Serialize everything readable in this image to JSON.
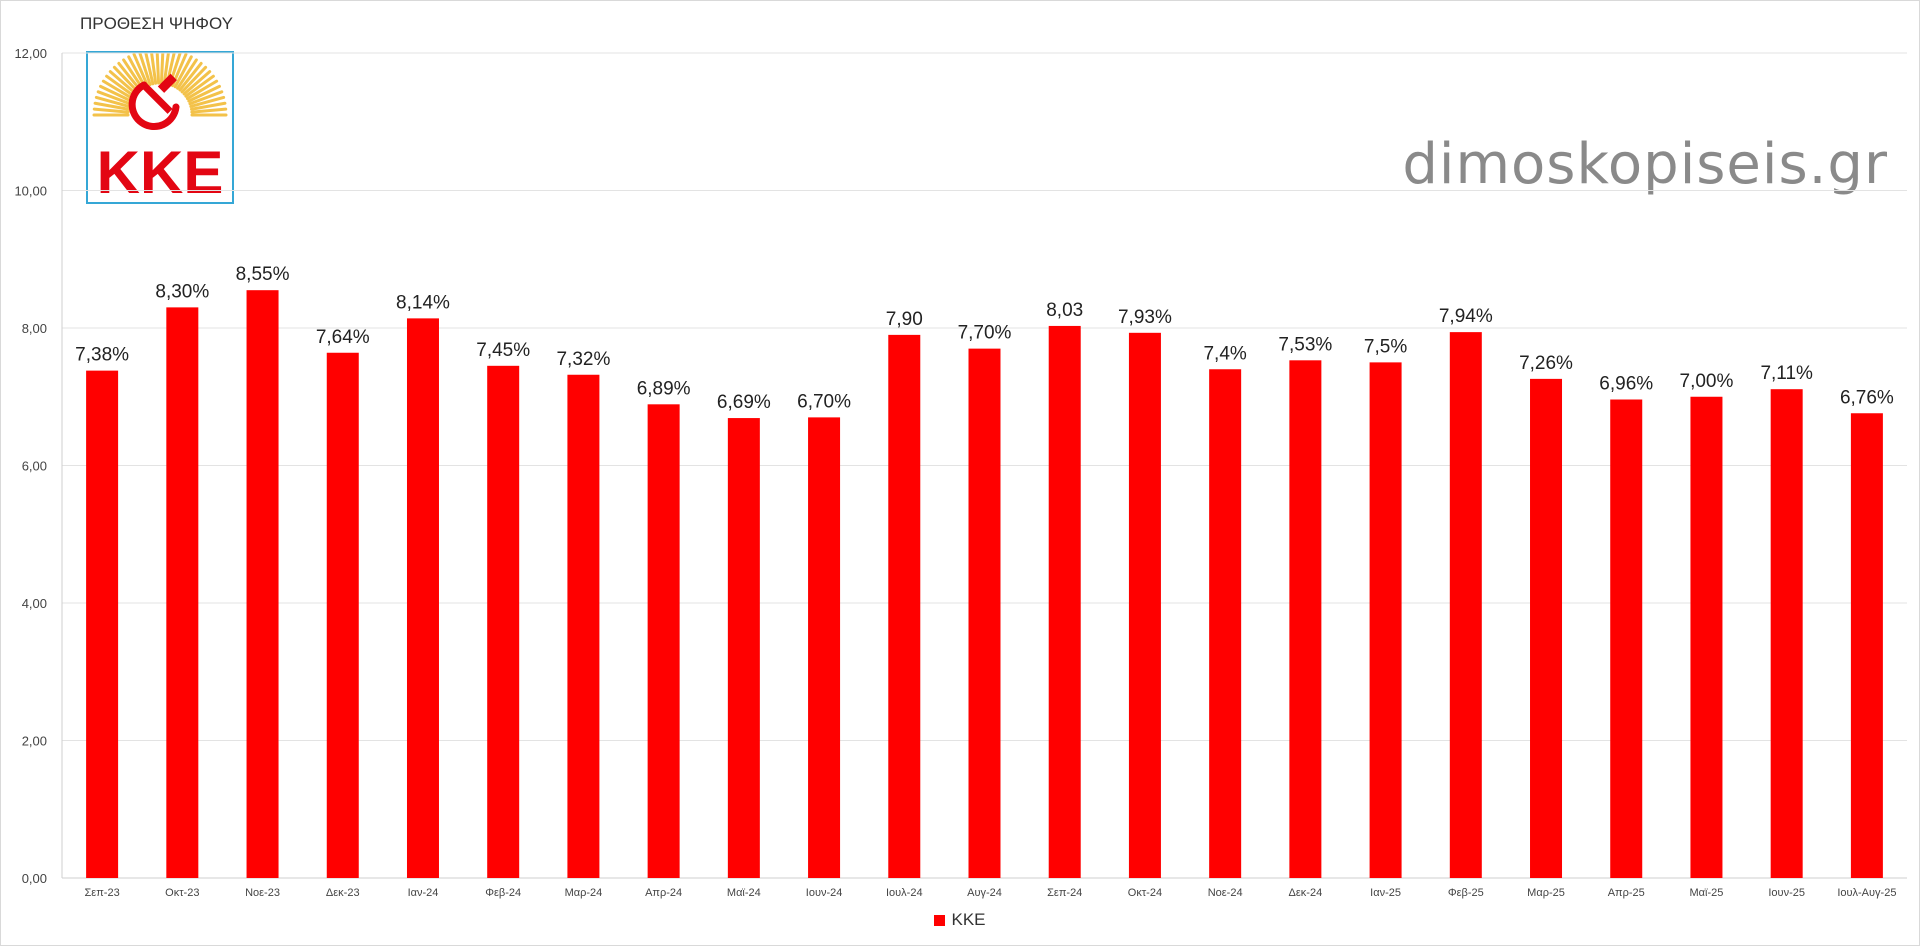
{
  "chart_data": {
    "type": "bar",
    "title": "ΠΡΟΘΕΣΗ ΨΗΦΟΥ",
    "categories": [
      "Σεπ-23",
      "Οκτ-23",
      "Νοε-23",
      "Δεκ-23",
      "Ιαν-24",
      "Φεβ-24",
      "Μαρ-24",
      "Απρ-24",
      "Μαϊ-24",
      "Ιουν-24",
      "Ιουλ-24",
      "Αυγ-24",
      "Σεπ-24",
      "Οκτ-24",
      "Νοε-24",
      "Δεκ-24",
      "Ιαν-25",
      "Φεβ-25",
      "Μαρ-25",
      "Απρ-25",
      "Μαϊ-25",
      "Ιουν-25",
      "Ιουλ-Αυγ-25"
    ],
    "series": [
      {
        "name": "ΚΚΕ",
        "color": "#ff0000",
        "values": [
          7.38,
          8.3,
          8.55,
          7.64,
          8.14,
          7.45,
          7.32,
          6.89,
          6.69,
          6.7,
          7.9,
          7.7,
          8.03,
          7.93,
          7.4,
          7.53,
          7.5,
          7.94,
          7.26,
          6.96,
          7.0,
          7.11,
          6.76
        ],
        "data_labels": [
          "7,38%",
          "8,30%",
          "8,55%",
          "7,64%",
          "8,14%",
          "7,45%",
          "7,32%",
          "6,89%",
          "6,69%",
          "6,70%",
          "7,90",
          "7,70%",
          "8,03",
          "7,93%",
          "7,4%",
          "7,53%",
          "7,5%",
          "7,94%",
          "7,26%",
          "6,96%",
          "7,00%",
          "7,11%",
          "6,76%"
        ]
      }
    ],
    "ylim": [
      0,
      12
    ],
    "yticks": [
      0,
      2,
      4,
      6,
      8,
      10,
      12
    ],
    "ytick_labels": [
      "0,00",
      "2,00",
      "4,00",
      "6,00",
      "8,00",
      "10,00",
      "12,00"
    ],
    "grid": true,
    "legend_position": "bottom"
  },
  "watermark": "dimoskopiseis.gr",
  "logo": {
    "text": "ΚΚΕ",
    "icon": "hammer-and-sickle-icon",
    "sun_color": "#f3c24a",
    "text_color": "#e30613"
  }
}
